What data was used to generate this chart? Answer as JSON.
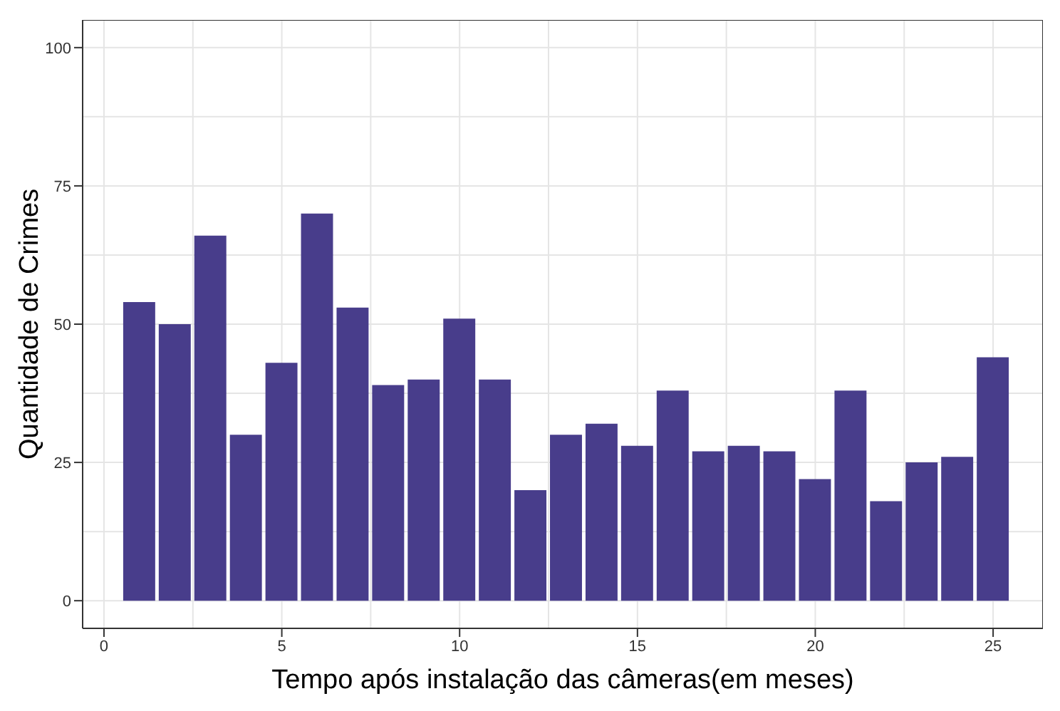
{
  "chart_data": {
    "type": "bar",
    "xlabel": "Tempo após instalação das câmeras(em meses)",
    "ylabel": "Quantidade de Crimes",
    "x": [
      1,
      2,
      3,
      4,
      5,
      6,
      7,
      8,
      9,
      10,
      11,
      12,
      13,
      14,
      15,
      16,
      17,
      18,
      19,
      20,
      21,
      22,
      23,
      24,
      25
    ],
    "values": [
      54,
      50,
      66,
      30,
      43,
      70,
      53,
      39,
      40,
      51,
      40,
      20,
      30,
      32,
      28,
      38,
      27,
      28,
      27,
      22,
      38,
      18,
      25,
      26,
      44
    ],
    "color": "#483d8b",
    "xlim": [
      -0.6,
      26.4
    ],
    "xticks": [
      0,
      5,
      10,
      15,
      20,
      25
    ],
    "ylim": [
      -5,
      105
    ],
    "yticks": [
      0,
      25,
      50,
      75,
      100
    ],
    "grid": true
  }
}
